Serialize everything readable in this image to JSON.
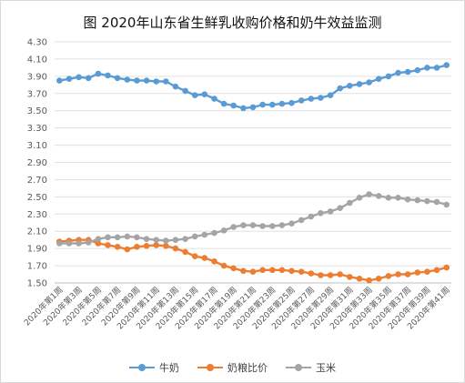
{
  "chart_data": {
    "type": "line",
    "title": "图  2020年山东省生鲜乳收购价格和奶牛效益监测",
    "xlabel": "",
    "ylabel": "",
    "ylim": [
      1.5,
      4.3
    ],
    "yticks": [
      "4.30",
      "4.10",
      "3.90",
      "3.70",
      "3.50",
      "3.30",
      "3.10",
      "2.90",
      "2.70",
      "2.50",
      "2.30",
      "2.10",
      "1.90",
      "1.70",
      "1.50"
    ],
    "ytick_values": [
      4.3,
      4.1,
      3.9,
      3.7,
      3.5,
      3.3,
      3.1,
      2.9,
      2.7,
      2.5,
      2.3,
      2.1,
      1.9,
      1.7,
      1.5
    ],
    "grid": true,
    "legend_position": "bottom",
    "categories": [
      "2020年第1周",
      "2020年第2周",
      "2020年第3周",
      "2020年第4周",
      "2020年第5周",
      "2020年第6周",
      "2020年第7周",
      "2020年第8周",
      "2020年第9周",
      "2020年第10周",
      "2020年第11周",
      "2020年第12周",
      "2020年第13周",
      "2020年第14周",
      "2020年第15周",
      "2020年第16周",
      "2020年第17周",
      "2020年第18周",
      "2020年第19周",
      "2020年第20周",
      "2020年第21周",
      "2020年第22周",
      "2020年第23周",
      "2020年第24周",
      "2020年第25周",
      "2020年第26周",
      "2020年第27周",
      "2020年第28周",
      "2020年第29周",
      "2020年第30周",
      "2020年第31周",
      "2020年第32周",
      "2020年第33周",
      "2020年第34周",
      "2020年第35周",
      "2020年第36周",
      "2020年第37周",
      "2020年第38周",
      "2020年第39周",
      "2020年第40周",
      "2020年第41周"
    ],
    "x_tick_labels": [
      "2020年第1周",
      "2020年第3周",
      "2020年第5周",
      "2020年第7周",
      "2020年第9周",
      "2020年第11周",
      "2020年第13周",
      "2020年第15周",
      "2020年第17周",
      "2020年第19周",
      "2020年第21周",
      "2020年第23周",
      "2020年第25周",
      "2020年第27周",
      "2020年第29周",
      "2020年第31周",
      "2020年第33周",
      "2020年第35周",
      "2020年第37周",
      "2020年第39周",
      "2020年第41周"
    ],
    "series": [
      {
        "name": "牛奶",
        "color": "#5b9bd5",
        "values": [
          3.85,
          3.87,
          3.89,
          3.88,
          3.93,
          3.91,
          3.88,
          3.86,
          3.85,
          3.85,
          3.84,
          3.84,
          3.78,
          3.73,
          3.68,
          3.69,
          3.64,
          3.58,
          3.56,
          3.53,
          3.54,
          3.57,
          3.57,
          3.58,
          3.59,
          3.62,
          3.64,
          3.65,
          3.68,
          3.76,
          3.79,
          3.81,
          3.83,
          3.87,
          3.9,
          3.94,
          3.95,
          3.97,
          4.0,
          4.0,
          4.03
        ]
      },
      {
        "name": "奶粮比价",
        "color": "#ed7d31",
        "values": [
          1.98,
          1.99,
          2.0,
          2.0,
          1.96,
          1.94,
          1.92,
          1.89,
          1.92,
          1.93,
          1.94,
          1.93,
          1.9,
          1.86,
          1.81,
          1.79,
          1.75,
          1.7,
          1.67,
          1.64,
          1.63,
          1.65,
          1.65,
          1.65,
          1.64,
          1.63,
          1.61,
          1.59,
          1.59,
          1.6,
          1.57,
          1.55,
          1.53,
          1.55,
          1.58,
          1.6,
          1.6,
          1.62,
          1.63,
          1.65,
          1.68
        ]
      },
      {
        "name": "玉米",
        "color": "#a5a5a5",
        "values": [
          1.96,
          1.96,
          1.96,
          1.97,
          2.01,
          2.03,
          2.03,
          2.04,
          2.03,
          2.01,
          2.0,
          1.99,
          2.0,
          2.01,
          2.04,
          2.06,
          2.08,
          2.11,
          2.15,
          2.17,
          2.17,
          2.16,
          2.16,
          2.17,
          2.19,
          2.23,
          2.27,
          2.31,
          2.33,
          2.37,
          2.43,
          2.49,
          2.53,
          2.51,
          2.49,
          2.49,
          2.47,
          2.46,
          2.45,
          2.44,
          2.41
        ]
      }
    ]
  }
}
